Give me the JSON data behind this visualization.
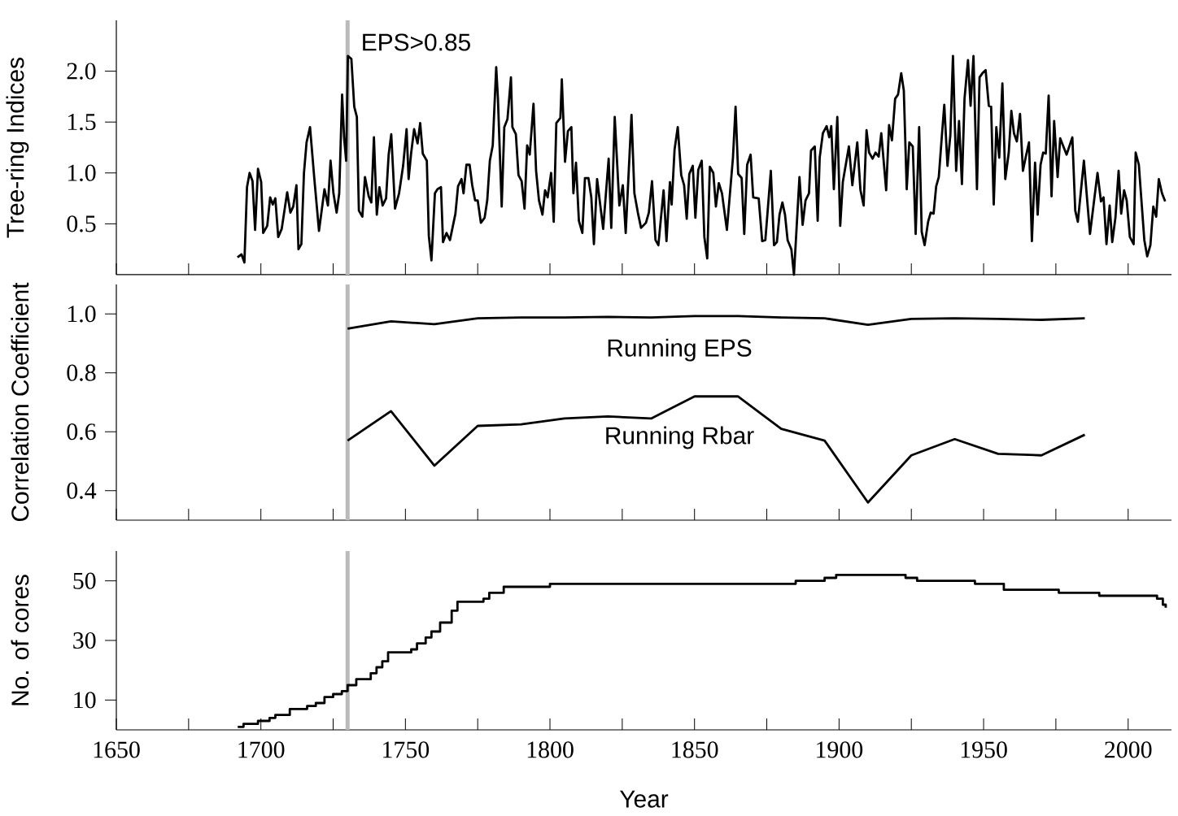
{
  "chart_data": [
    {
      "type": "line",
      "ylabel": "Tree-ring Indices",
      "xlim": [
        1650,
        2015
      ],
      "ylim": [
        0,
        2.5
      ],
      "xticks": [
        1650,
        {
          "value": 1675,
          "label": null
        },
        1700,
        {
          "value": 1725,
          "label": null
        },
        1750,
        {
          "value": 1775,
          "label": null
        },
        1800,
        {
          "value": 1825,
          "label": null
        },
        1850,
        {
          "value": 1875,
          "label": null
        },
        1900,
        {
          "value": 1925,
          "label": null
        },
        1950,
        {
          "value": 1975,
          "label": null
        },
        2000
      ],
      "yticks": [
        {
          "value": 0.5,
          "label": "0.5"
        },
        {
          "value": 1.0,
          "label": "1.0"
        },
        {
          "value": 1.5,
          "label": "1.5"
        },
        {
          "value": 2.0,
          "label": "2.0"
        }
      ],
      "tick_labels": "y",
      "ref_lines": [
        {
          "axis": "x",
          "value": 1730,
          "label": "EPS>0.85",
          "color": "#bbbbbb"
        }
      ],
      "series": [
        {
          "color": "#000000",
          "x": [
            1691.9,
            1693.3,
            1694.3,
            1695.2,
            1696.1,
            1697.1,
            1698.0,
            1699.0,
            1700.1,
            1700.8,
            1702.2,
            1703.2,
            1704.1,
            1705.0,
            1706.0,
            1707.2,
            1709.1,
            1710.2,
            1711.2,
            1712.3,
            1713.0,
            1714.0,
            1714.9,
            1715.8,
            1717.0,
            1718.5,
            1720.1,
            1722.0,
            1723.2,
            1724.1,
            1725.1,
            1726.2,
            1727.1,
            1728.1,
            1728.8,
            1729.5,
            1730.1,
            1731.3,
            1732.3,
            1733.2,
            1733.9,
            1735.1,
            1736.0,
            1737.3,
            1738.2,
            1739.1,
            1740.1,
            1741.0,
            1742.1,
            1743.3,
            1744.2,
            1745.1,
            1746.4,
            1747.8,
            1749.2,
            1750.4,
            1751.1,
            1752.0,
            1753.0,
            1754.2,
            1755.1,
            1756.0,
            1757.4,
            1758.1,
            1759.0,
            1760.2,
            1761.1,
            1762.3,
            1763.0,
            1764.2,
            1765.4,
            1767.3,
            1768.2,
            1769.4,
            1770.1,
            1771.1,
            1772.2,
            1773.1,
            1774.1,
            1775.0,
            1776.1,
            1777.4,
            1778.3,
            1779.2,
            1780.2,
            1781.4,
            1782.0,
            1783.3,
            1784.2,
            1785.3,
            1786.5,
            1787.0,
            1788.2,
            1789.1,
            1790.2,
            1791.2,
            1792.1,
            1793.0,
            1794.3,
            1795.2,
            1796.2,
            1797.4,
            1798.3,
            1799.2,
            1800.4,
            1801.3,
            1802.2,
            1803.6,
            1804.1,
            1805.2,
            1806.2,
            1807.4,
            1808.1,
            1809.0,
            1810.0,
            1811.2,
            1812.1,
            1813.3,
            1814.3,
            1815.2,
            1816.3,
            1818.4,
            1820.3,
            1821.2,
            1822.4,
            1824.0,
            1825.2,
            1826.2,
            1828.2,
            1829.2,
            1830.4,
            1831.5,
            1833.2,
            1834.2,
            1835.3,
            1836.5,
            1837.5,
            1839.3,
            1840.3,
            1841.5,
            1842.1,
            1843.1,
            1844.2,
            1845.4,
            1846.4,
            1847.3,
            1848.2,
            1849.4,
            1850.3,
            1851.3,
            1852.5,
            1853.4,
            1854.4,
            1855.3,
            1856.5,
            1857.4,
            1858.4,
            1859.5,
            1861.2,
            1863.3,
            1864.2,
            1865.1,
            1866.3,
            1867.2,
            1868.2,
            1869.4,
            1870.3,
            1872.2,
            1873.4,
            1874.5,
            1876.4,
            1877.5,
            1878.5,
            1879.4,
            1880.4,
            1881.3,
            1882.2,
            1883.5,
            1884.4,
            1886.3,
            1887.4,
            1888.4,
            1889.6,
            1890.3,
            1891.6,
            1892.6,
            1893.3,
            1894.4,
            1895.7,
            1896.6,
            1897.3,
            1898.2,
            1899.4,
            1900.4,
            1901.3,
            1903.4,
            1904.6,
            1906.3,
            1907.4,
            1908.5,
            1909.5,
            1910.4,
            1911.6,
            1912.6,
            1913.7,
            1914.6,
            1916.3,
            1917.3,
            1918.3,
            1919.4,
            1920.4,
            1921.5,
            1922.4,
            1923.4,
            1924.3,
            1925.5,
            1926.5,
            1927.7,
            1928.6,
            1929.6,
            1930.8,
            1931.7,
            1932.7,
            1933.6,
            1934.5,
            1935.5,
            1936.4,
            1937.5,
            1938.5,
            1939.4,
            1940.5,
            1941.5,
            1942.5,
            1943.4,
            1944.6,
            1945.5,
            1946.5,
            1947.7,
            1948.6,
            1949.6,
            1950.7,
            1951.8,
            1952.6,
            1953.5,
            1954.4,
            1955.4,
            1956.5,
            1957.5,
            1958.7,
            1959.6,
            1960.5,
            1961.5,
            1962.6,
            1963.6,
            1964.6,
            1965.7,
            1966.7,
            1967.8,
            1968.7,
            1969.7,
            1970.6,
            1971.5,
            1972.5,
            1973.5,
            1974.4,
            1975.6,
            1976.5,
            1978.7,
            1980.7,
            1981.7,
            1982.6,
            1984.7,
            1986.8,
            1989.4,
            1990.6,
            1991.5,
            1992.5,
            1993.6,
            1994.5,
            1995.6,
            1996.7,
            1997.6,
            1998.6,
            1999.5,
            2000.6,
            2001.9,
            2002.6,
            2003.7,
            2005.6,
            2006.6,
            2007.7,
            2008.7,
            2009.7,
            2010.6,
            2011.7,
            2012.8
          ],
          "values": [
            0.17,
            0.2,
            0.12,
            0.86,
            1.0,
            0.92,
            0.44,
            1.04,
            0.91,
            0.41,
            0.48,
            0.76,
            0.69,
            0.75,
            0.37,
            0.45,
            0.81,
            0.61,
            0.67,
            0.88,
            0.25,
            0.3,
            1.0,
            1.3,
            1.45,
            0.94,
            0.43,
            0.84,
            0.68,
            1.12,
            0.8,
            0.61,
            0.8,
            1.77,
            1.34,
            1.12,
            2.15,
            2.12,
            1.65,
            1.55,
            0.63,
            0.57,
            0.96,
            0.77,
            0.71,
            1.35,
            0.59,
            0.86,
            0.68,
            0.75,
            1.18,
            1.38,
            0.65,
            0.8,
            1.07,
            1.43,
            0.94,
            1.2,
            1.43,
            1.29,
            1.49,
            1.19,
            1.12,
            0.38,
            0.14,
            0.8,
            0.84,
            0.86,
            0.32,
            0.41,
            0.34,
            0.6,
            0.87,
            0.94,
            0.8,
            1.08,
            1.08,
            0.88,
            0.73,
            0.73,
            0.51,
            0.56,
            0.73,
            1.12,
            1.27,
            2.04,
            1.73,
            0.67,
            1.45,
            1.53,
            1.94,
            1.45,
            1.38,
            0.98,
            0.92,
            0.65,
            1.27,
            1.18,
            1.68,
            1.02,
            0.73,
            0.59,
            0.83,
            0.76,
            1.0,
            0.52,
            1.49,
            1.54,
            1.92,
            1.11,
            1.41,
            1.45,
            0.8,
            1.1,
            0.53,
            0.41,
            0.95,
            0.95,
            0.76,
            0.3,
            0.94,
            0.45,
            1.14,
            0.46,
            1.55,
            0.68,
            0.88,
            0.41,
            1.57,
            0.8,
            0.61,
            0.46,
            0.51,
            0.61,
            0.92,
            0.34,
            0.29,
            0.83,
            0.33,
            0.91,
            0.69,
            1.23,
            1.45,
            0.98,
            0.88,
            0.55,
            0.99,
            1.07,
            0.56,
            1.03,
            1.12,
            0.37,
            0.16,
            1.06,
            1.0,
            0.67,
            0.9,
            0.8,
            0.44,
            1.15,
            1.65,
            0.99,
            0.95,
            0.4,
            1.08,
            1.18,
            0.76,
            0.75,
            0.33,
            0.34,
            1.02,
            0.29,
            0.32,
            0.59,
            0.71,
            0.59,
            0.34,
            0.25,
            0.0,
            0.96,
            0.49,
            0.73,
            0.8,
            1.22,
            1.26,
            0.53,
            1.15,
            1.39,
            1.46,
            1.35,
            1.46,
            0.84,
            1.55,
            0.48,
            0.91,
            1.26,
            0.88,
            1.3,
            0.83,
            0.68,
            1.42,
            1.2,
            1.14,
            1.2,
            1.16,
            1.39,
            0.83,
            1.47,
            1.32,
            1.73,
            1.77,
            1.98,
            1.81,
            0.84,
            1.3,
            1.26,
            0.4,
            1.45,
            0.42,
            0.29,
            0.52,
            0.61,
            0.6,
            0.87,
            0.96,
            1.34,
            1.67,
            1.07,
            1.37,
            2.15,
            1.02,
            1.51,
            0.89,
            1.73,
            2.11,
            1.66,
            2.15,
            0.84,
            1.94,
            1.98,
            2.01,
            1.66,
            1.65,
            0.69,
            1.45,
            1.15,
            1.88,
            0.94,
            1.2,
            1.61,
            1.39,
            1.31,
            1.58,
            1.02,
            1.16,
            1.3,
            0.33,
            1.1,
            0.59,
            1.08,
            1.2,
            1.19,
            1.76,
            0.77,
            1.51,
            0.96,
            1.34,
            1.18,
            1.35,
            0.63,
            0.52,
            1.12,
            0.4,
            1.0,
            0.72,
            0.76,
            0.3,
            0.68,
            0.32,
            0.56,
            1.02,
            0.6,
            0.83,
            0.73,
            0.37,
            0.3,
            1.2,
            1.08,
            0.34,
            0.18,
            0.29,
            0.67,
            0.57,
            0.94,
            0.8,
            0.72
          ]
        }
      ]
    },
    {
      "type": "line",
      "ylabel": "Correlation Coefficient",
      "xlim": [
        1650,
        2015
      ],
      "ylim": [
        0.3,
        1.1
      ],
      "xticks": [
        1650,
        {
          "value": 1675,
          "label": null
        },
        1700,
        {
          "value": 1725,
          "label": null
        },
        1750,
        {
          "value": 1775,
          "label": null
        },
        1800,
        {
          "value": 1825,
          "label": null
        },
        1850,
        {
          "value": 1875,
          "label": null
        },
        1900,
        {
          "value": 1925,
          "label": null
        },
        1950,
        {
          "value": 1975,
          "label": null
        },
        2000
      ],
      "yticks": [
        {
          "value": 0.4,
          "label": "0.4"
        },
        {
          "value": 0.6,
          "label": "0.6"
        },
        {
          "value": 0.8,
          "label": "0.8"
        },
        {
          "value": 1.0,
          "label": "1.0"
        }
      ],
      "tick_labels": "y",
      "ref_lines": [
        {
          "axis": "x",
          "value": 1730,
          "color": "#bbbbbb"
        }
      ],
      "x": [
        1730,
        1745,
        1760,
        1775,
        1790,
        1805,
        1820,
        1835,
        1850,
        1865,
        1880,
        1895,
        1910,
        1925,
        1940,
        1955,
        1970,
        1985
      ],
      "series": [
        {
          "name": "Running EPS",
          "color": "#000000",
          "values": [
            0.95,
            0.975,
            0.965,
            0.985,
            0.988,
            0.988,
            0.99,
            0.988,
            0.993,
            0.993,
            0.988,
            0.985,
            0.963,
            0.983,
            0.985,
            0.983,
            0.98,
            0.985
          ]
        },
        {
          "name": "Running Rbar",
          "color": "#000000",
          "values": [
            0.57,
            0.67,
            0.485,
            0.62,
            0.625,
            0.645,
            0.652,
            0.645,
            0.72,
            0.72,
            0.61,
            0.57,
            0.36,
            0.52,
            0.575,
            0.525,
            0.52,
            0.59
          ]
        }
      ]
    },
    {
      "type": "step",
      "ylabel": "No. of cores",
      "xlabel": "Year",
      "xlim": [
        1650,
        2015
      ],
      "ylim": [
        0,
        60
      ],
      "xticks": [
        1650,
        {
          "value": 1675,
          "label": null
        },
        1700,
        {
          "value": 1725,
          "label": null
        },
        1750,
        {
          "value": 1775,
          "label": null
        },
        1800,
        {
          "value": 1825,
          "label": null
        },
        1850,
        {
          "value": 1875,
          "label": null
        },
        1900,
        {
          "value": 1925,
          "label": null
        },
        1950,
        {
          "value": 1975,
          "label": null
        },
        2000
      ],
      "yticks": [
        10,
        30,
        50
      ],
      "ref_lines": [
        {
          "axis": "x",
          "value": 1730,
          "color": "#bbbbbb"
        }
      ],
      "series": [
        {
          "color": "#000000",
          "x": [
            1692,
            1694,
            1699,
            1703,
            1705,
            1710,
            1716,
            1719,
            1722,
            1725,
            1728,
            1730,
            1733,
            1738,
            1740,
            1742,
            1744,
            1752,
            1754,
            1757,
            1759,
            1762,
            1766,
            1768,
            1777,
            1779,
            1784,
            1800,
            1885,
            1895,
            1899,
            1923,
            1927,
            1947,
            1957,
            1976,
            1990,
            2010,
            2012,
            2013
          ],
          "values": [
            1,
            2,
            3,
            4,
            5,
            7,
            8,
            9,
            11,
            12,
            13,
            15,
            17,
            19,
            21,
            23,
            26,
            27,
            29,
            31,
            33,
            36,
            40,
            43,
            44,
            46,
            48,
            49,
            50,
            51,
            52,
            51,
            50,
            49,
            47,
            46,
            45,
            44,
            42,
            41
          ]
        }
      ]
    }
  ]
}
